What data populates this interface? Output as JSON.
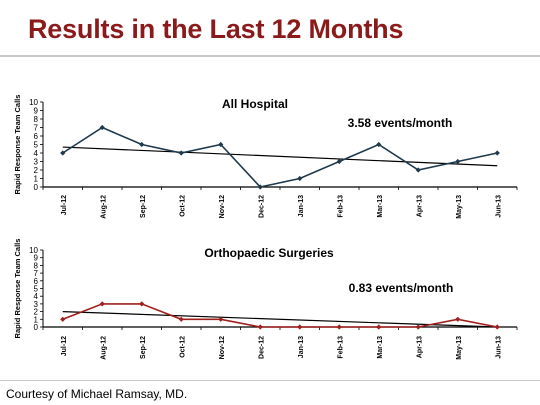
{
  "slide": {
    "title": "Results in the Last 12 Months",
    "credit": "Courtesy of Michael Ramsay, MD."
  },
  "colors": {
    "title": "#8b1a1a",
    "series1": "#1f3a4d",
    "series2": "#a0201e",
    "trend": "#000000"
  },
  "chart_data": [
    {
      "type": "line",
      "title": "All Hospital",
      "annotation": "3.58 events/month",
      "ylabel": "Rapid Response Team Calls",
      "ylim": [
        0,
        10
      ],
      "yticks": [
        0,
        1,
        2,
        3,
        4,
        5,
        6,
        7,
        8,
        9,
        10
      ],
      "grid": false,
      "categories": [
        "Jul-12",
        "Aug-12",
        "Sep-12",
        "Oct-12",
        "Nov-12",
        "Dec-12",
        "Jan-13",
        "Feb-13",
        "Mar-13",
        "Apr-13",
        "May-13",
        "Jun-13"
      ],
      "series": [
        {
          "values": [
            4,
            7,
            5,
            4,
            5,
            0,
            1,
            3,
            5,
            2,
            3,
            4
          ]
        }
      ],
      "trendline": [
        4.7,
        2.5
      ]
    },
    {
      "type": "line",
      "title": "Orthopaedic Surgeries",
      "annotation": "0.83 events/month",
      "ylabel": "Rapid Response Team Calls",
      "ylim": [
        0,
        10
      ],
      "yticks": [
        0,
        1,
        2,
        3,
        4,
        5,
        6,
        7,
        8,
        9,
        10
      ],
      "grid": false,
      "categories": [
        "Jul-12",
        "Aug-12",
        "Sep-12",
        "Oct-12",
        "Nov-12",
        "Dec-12",
        "Jan-13",
        "Feb-13",
        "Mar-13",
        "Apr-13",
        "May-13",
        "Jun-13"
      ],
      "series": [
        {
          "values": [
            1,
            3,
            3,
            1,
            1,
            0,
            0,
            0,
            0,
            0,
            1,
            0
          ]
        }
      ],
      "trendline": [
        2.0,
        0
      ]
    }
  ]
}
